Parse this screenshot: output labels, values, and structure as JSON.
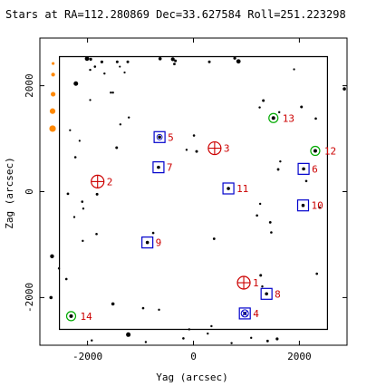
{
  "chart_data": {
    "type": "scatter",
    "title": "Stars at RA=112.280869 Dec=33.627584 Roll=251.223298",
    "xlabel": "Yag (arcsec)",
    "ylabel": "Zag (arcsec)",
    "xlim": [
      -2900,
      2900
    ],
    "ylim": [
      -2900,
      2900
    ],
    "x_ticks": [
      -2000,
      0,
      2000
    ],
    "x_tick_labels": [
      "-2000",
      "0",
      "2000"
    ],
    "y_ticks": [
      -2000,
      0,
      2000
    ],
    "y_tick_labels": [
      "-2000",
      "0",
      "2000"
    ],
    "field_box": [
      [
        -2530,
        2550
      ],
      [
        2530,
        2550
      ],
      [
        2530,
        -2600
      ],
      [
        -2530,
        -2600
      ]
    ],
    "colors": {
      "axes": "#000000",
      "field_box": "#000000",
      "guide": "#0000cc",
      "fid": "#cc0000",
      "mon": "#00aa00",
      "ext": "#ff8800",
      "labels": "#cc0000"
    },
    "stars": [
      [
        -2010,
        2510,
        2.4
      ],
      [
        -1940,
        2500,
        1.6
      ],
      [
        -1730,
        2450,
        1.6
      ],
      [
        -1440,
        2450,
        1.5
      ],
      [
        -1240,
        2450,
        1.5
      ],
      [
        -630,
        2510,
        1.8
      ],
      [
        -390,
        2500,
        2.1
      ],
      [
        -1950,
        2300,
        1.2
      ],
      [
        -1860,
        2360,
        1.3
      ],
      [
        -1680,
        2230,
        1.2
      ],
      [
        -360,
        2410,
        1.4
      ],
      [
        -340,
        2470,
        1.5
      ],
      [
        300,
        2450,
        1.5
      ],
      [
        780,
        2520,
        1.6
      ],
      [
        850,
        2460,
        2.4
      ],
      [
        -2220,
        2040,
        2.5
      ],
      [
        -1560,
        1870,
        1.2
      ],
      [
        -1520,
        1870,
        1.2
      ],
      [
        -1220,
        1400,
        1.2
      ],
      [
        1320,
        1720,
        1.5
      ],
      [
        1250,
        1590,
        1.2
      ],
      [
        1620,
        1500,
        1.2
      ],
      [
        2040,
        1600,
        1.5
      ],
      [
        2310,
        1380,
        1.3
      ],
      [
        2850,
        1940,
        1.8
      ],
      [
        -1380,
        1270,
        1.2
      ],
      [
        -1450,
        830,
        1.5
      ],
      [
        -2230,
        650,
        1.3
      ],
      [
        10,
        1060,
        1.3
      ],
      [
        60,
        760,
        1.5
      ],
      [
        -130,
        790,
        1.2
      ],
      [
        1640,
        570,
        1.2
      ],
      [
        1600,
        420,
        1.4
      ],
      [
        2130,
        200,
        1.3
      ],
      [
        -2370,
        -40,
        1.4
      ],
      [
        -1820,
        -50,
        1.5
      ],
      [
        -2100,
        -190,
        1.3
      ],
      [
        -2080,
        -320,
        1.2
      ],
      [
        -2250,
        -480,
        1.2
      ],
      [
        -2090,
        -930,
        1.2
      ],
      [
        -1830,
        -800,
        1.3
      ],
      [
        -760,
        -780,
        1.3
      ],
      [
        390,
        -890,
        1.4
      ],
      [
        1200,
        -450,
        1.3
      ],
      [
        1470,
        -770,
        1.3
      ],
      [
        1450,
        -580,
        1.4
      ],
      [
        2380,
        -300,
        1.3
      ],
      [
        1270,
        -1580,
        1.5
      ],
      [
        1300,
        -1790,
        1.2
      ],
      [
        2330,
        -1550,
        1.3
      ],
      [
        -2690,
        -2000,
        1.8
      ],
      [
        -1520,
        -2120,
        1.8
      ],
      [
        -950,
        -2200,
        1.3
      ],
      [
        -650,
        -2230,
        1.2
      ],
      [
        -2540,
        -1450,
        1.2
      ],
      [
        -2400,
        -1650,
        1.3
      ],
      [
        -80,
        -2600,
        1.2
      ],
      [
        340,
        -2540,
        1.2
      ],
      [
        1400,
        -2820,
        1.4
      ],
      [
        1580,
        -2780,
        1.6
      ],
      [
        -1230,
        -2700,
        2.5
      ],
      [
        -190,
        -2770,
        1.3
      ],
      [
        1090,
        -2760,
        1.2
      ],
      [
        -1920,
        -2810,
        1.2
      ],
      [
        270,
        -2680,
        1.2
      ],
      [
        -900,
        -2840,
        1.2
      ],
      [
        720,
        -2860,
        1.2
      ],
      [
        -2670,
        -1220,
        2.2
      ],
      [
        1260,
        -230,
        1.2
      ],
      [
        -1950,
        1730,
        1.1
      ],
      [
        -2330,
        1160,
        1.1
      ],
      [
        -1390,
        2360,
        1.1
      ],
      [
        -1300,
        2250,
        1.1
      ],
      [
        1900,
        2310,
        1.1
      ],
      [
        -2150,
        960,
        1.1
      ]
    ],
    "guide_stars": [
      {
        "x": 1380,
        "y": -1930,
        "label": "8"
      },
      {
        "x": 970,
        "y": -2300,
        "label": "4"
      },
      {
        "x": -640,
        "y": 1030,
        "label": "5"
      },
      {
        "x": -660,
        "y": 460,
        "label": "7"
      },
      {
        "x": 660,
        "y": 60,
        "label": "11"
      },
      {
        "x": -870,
        "y": -960,
        "label": "9"
      },
      {
        "x": 2080,
        "y": 430,
        "label": "6"
      },
      {
        "x": 2070,
        "y": -260,
        "label": "10"
      }
    ],
    "fid_lights": [
      {
        "x": 950,
        "y": -1720,
        "label": "1"
      },
      {
        "x": -1810,
        "y": 190,
        "label": "2"
      },
      {
        "x": 400,
        "y": 820,
        "label": "3"
      }
    ],
    "mon_windows": [
      {
        "x": 1510,
        "y": 1390,
        "label": "13"
      },
      {
        "x": 2300,
        "y": 770,
        "label": "12"
      },
      {
        "x": -2310,
        "y": -2350,
        "label": "14"
      }
    ],
    "ext_stars": [
      [
        -2650,
        2420
      ],
      [
        -2650,
        2210
      ],
      [
        -2650,
        1840
      ],
      [
        -2660,
        1520
      ],
      [
        -2660,
        1190
      ]
    ]
  }
}
